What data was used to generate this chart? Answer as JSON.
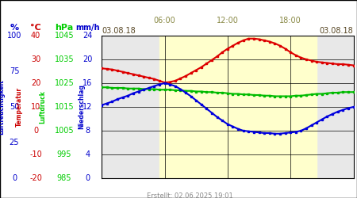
{
  "footer": "Erstellt: 02.06.2025 19:01",
  "time_start": 0,
  "time_end": 24,
  "x_ticks": [
    0,
    6,
    12,
    18,
    24
  ],
  "x_tick_top_labels": [
    "03.08.18",
    "",
    "",
    "",
    "03.08.18"
  ],
  "x_tick_mid_labels": [
    "",
    "06:00",
    "12:00",
    "18:00",
    ""
  ],
  "yellow_band_start": 5.5,
  "yellow_band_end": 20.5,
  "bg_color_day": "#ffffcc",
  "bg_color_night": "#e8e8e8",
  "yticks_right": [
    0,
    4,
    8,
    12,
    16,
    20,
    24
  ],
  "ylim": [
    0,
    24
  ],
  "pct_color": "#0000cc",
  "temp_color": "#cc0000",
  "hpa_color": "#00cc00",
  "mmh_color": "#0000cc",
  "pct_vals": [
    0,
    25,
    50,
    75,
    100
  ],
  "temp_vals": [
    -20,
    -10,
    0,
    10,
    20,
    30,
    40
  ],
  "hpa_vals": [
    985,
    995,
    1005,
    1015,
    1025,
    1035,
    1045
  ],
  "mmh_vals": [
    0,
    4,
    8,
    12,
    16,
    20,
    24
  ],
  "red_t": [
    0,
    0.5,
    1,
    1.5,
    2,
    2.5,
    3,
    3.5,
    4,
    4.5,
    5,
    5.5,
    6,
    6.5,
    7,
    7.5,
    8,
    8.5,
    9,
    9.5,
    10,
    10.5,
    11,
    11.5,
    12,
    12.5,
    13,
    13.5,
    14,
    14.5,
    15,
    15.5,
    16,
    16.5,
    17,
    17.5,
    18,
    18.5,
    19,
    19.5,
    20,
    20.5,
    21,
    21.5,
    22,
    22.5,
    23,
    23.5,
    24
  ],
  "red_v": [
    18.5,
    18.4,
    18.3,
    18.1,
    17.9,
    17.7,
    17.5,
    17.3,
    17.1,
    16.9,
    16.7,
    16.4,
    16.1,
    16.2,
    16.4,
    16.8,
    17.2,
    17.7,
    18.2,
    18.7,
    19.3,
    19.9,
    20.5,
    21.2,
    21.8,
    22.3,
    22.8,
    23.2,
    23.5,
    23.5,
    23.4,
    23.2,
    23.0,
    22.7,
    22.3,
    21.8,
    21.2,
    20.7,
    20.3,
    20.0,
    19.8,
    19.6,
    19.5,
    19.4,
    19.3,
    19.2,
    19.2,
    19.1,
    19.0
  ],
  "green_t": [
    0,
    0.5,
    1,
    1.5,
    2,
    2.5,
    3,
    3.5,
    4,
    4.5,
    5,
    5.5,
    6,
    6.5,
    7,
    7.5,
    8,
    8.5,
    9,
    9.5,
    10,
    10.5,
    11,
    11.5,
    12,
    12.5,
    13,
    13.5,
    14,
    14.5,
    15,
    15.5,
    16,
    16.5,
    17,
    17.5,
    18,
    18.5,
    19,
    19.5,
    20,
    20.5,
    21,
    21.5,
    22,
    22.5,
    23,
    23.5,
    24
  ],
  "green_v": [
    15.3,
    15.3,
    15.2,
    15.2,
    15.2,
    15.1,
    15.1,
    15.1,
    15.0,
    15.0,
    15.0,
    14.9,
    14.9,
    14.9,
    14.8,
    14.8,
    14.7,
    14.7,
    14.6,
    14.6,
    14.5,
    14.5,
    14.4,
    14.4,
    14.3,
    14.2,
    14.2,
    14.1,
    14.1,
    14.0,
    14.0,
    13.9,
    13.9,
    13.8,
    13.8,
    13.8,
    13.8,
    13.9,
    13.9,
    14.0,
    14.1,
    14.2,
    14.2,
    14.3,
    14.4,
    14.4,
    14.5,
    14.5,
    14.5
  ],
  "blue_t": [
    0,
    0.5,
    1,
    1.5,
    2,
    2.5,
    3,
    3.5,
    4,
    4.5,
    5,
    5.5,
    6,
    6.5,
    7,
    7.5,
    8,
    8.5,
    9,
    9.5,
    10,
    10.5,
    11,
    11.5,
    12,
    12.5,
    13,
    13.5,
    14,
    14.5,
    15,
    15.5,
    16,
    16.5,
    17,
    17.5,
    18,
    18.5,
    19,
    19.5,
    20,
    20.5,
    21,
    21.5,
    22,
    22.5,
    23,
    23.5,
    24
  ],
  "blue_v": [
    12.3,
    12.6,
    12.9,
    13.3,
    13.6,
    13.9,
    14.3,
    14.6,
    14.9,
    15.2,
    15.5,
    15.8,
    16.0,
    15.8,
    15.5,
    15.0,
    14.4,
    13.8,
    13.1,
    12.4,
    11.7,
    11.0,
    10.3,
    9.7,
    9.1,
    8.7,
    8.3,
    8.0,
    7.9,
    7.8,
    7.7,
    7.6,
    7.6,
    7.5,
    7.5,
    7.6,
    7.7,
    7.8,
    8.0,
    8.4,
    8.9,
    9.4,
    9.9,
    10.4,
    10.8,
    11.2,
    11.5,
    11.8,
    12.0
  ],
  "red_color": "#dd0000",
  "green_color": "#00bb00",
  "blue_color": "#0000dd"
}
